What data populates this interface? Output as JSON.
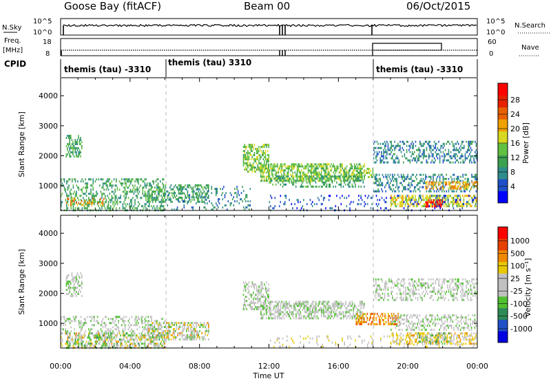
{
  "header": {
    "station": "Goose Bay (fitACF)",
    "beam": "Beam 00",
    "date": "06/Oct/2015"
  },
  "summary": {
    "nsky_label": "N.Sky",
    "nsky_ticks": [
      "10^5",
      "10^0"
    ],
    "nsearch_label": "N.Search",
    "nsearch_ticks": [
      "10^5",
      "10^0"
    ],
    "freq_label": "Freq.",
    "freq_unit": "[MHz]",
    "freq_ticks": [
      "18",
      "8"
    ],
    "nave_label": "Nave",
    "nave_ticks": [
      "60",
      "0"
    ],
    "cpid_label": "CPID",
    "cpid_segments": [
      {
        "start_hr": 0,
        "end_hr": 6,
        "label": "themis (tau) -3310"
      },
      {
        "start_hr": 6,
        "end_hr": 18,
        "label": "themis (tau) 3310"
      },
      {
        "start_hr": 18,
        "end_hr": 24,
        "label": "themis (tau) -3310"
      }
    ]
  },
  "chart_data": [
    {
      "type": "heatmap",
      "name": "power",
      "ylabel": "Slant Range [km]",
      "yticks": [
        1000,
        2000,
        3000,
        4000
      ],
      "ylim": [
        180,
        4600
      ],
      "xlim": [
        0,
        24
      ],
      "colorbar_label": "Power [dB]",
      "colorbar_ticks": [
        "28",
        "24",
        "20",
        "16",
        "12",
        "8",
        "4"
      ],
      "colorbar_colors": [
        "#0000ff",
        "#1e50c8",
        "#2f8c8c",
        "#3ca050",
        "#60c040",
        "#d8d820",
        "#f0a000",
        "#e86000",
        "#e82000",
        "#ff0000"
      ],
      "scatter_bands": [
        {
          "h0": 0.3,
          "h1": 1.2,
          "r0": 2000,
          "r1": 2700,
          "level": 3,
          "density": 0.5
        },
        {
          "h0": 0.0,
          "h1": 6.0,
          "r0": 200,
          "r1": 1250,
          "level": 3,
          "density": 0.35
        },
        {
          "h0": 0.3,
          "h1": 2.5,
          "r0": 350,
          "r1": 600,
          "level": 6,
          "density": 0.3
        },
        {
          "h0": 5.0,
          "h1": 8.5,
          "r0": 500,
          "r1": 1050,
          "level": 3,
          "density": 0.4
        },
        {
          "h0": 6.0,
          "h1": 11.0,
          "r0": 200,
          "r1": 1000,
          "level": 2,
          "density": 0.15
        },
        {
          "h0": 10.5,
          "h1": 12.0,
          "r0": 1500,
          "r1": 2400,
          "level": 4,
          "density": 0.55
        },
        {
          "h0": 11.5,
          "h1": 17.5,
          "r0": 1150,
          "r1": 1750,
          "level": 4,
          "density": 0.6
        },
        {
          "h0": 12.0,
          "h1": 17.5,
          "r0": 1000,
          "r1": 1350,
          "level": 3,
          "density": 0.3
        },
        {
          "h0": 17.0,
          "h1": 18.0,
          "r0": 1300,
          "r1": 1600,
          "level": 4,
          "density": 0.5
        },
        {
          "h0": 18.0,
          "h1": 24.0,
          "r0": 1750,
          "r1": 2500,
          "level": 2,
          "density": 0.4
        },
        {
          "h0": 18.0,
          "h1": 24.0,
          "r0": 800,
          "r1": 1400,
          "level": 2,
          "density": 0.35
        },
        {
          "h0": 19.0,
          "h1": 24.0,
          "r0": 300,
          "r1": 700,
          "level": 5,
          "density": 0.55
        },
        {
          "h0": 21.0,
          "h1": 22.0,
          "r0": 300,
          "r1": 550,
          "level": 9,
          "density": 0.6
        },
        {
          "h0": 21.0,
          "h1": 24.0,
          "r0": 900,
          "r1": 1150,
          "level": 6,
          "density": 0.5
        },
        {
          "h0": 12.0,
          "h1": 24.0,
          "r0": 200,
          "r1": 700,
          "level": 1,
          "density": 0.12
        }
      ]
    },
    {
      "type": "heatmap",
      "name": "velocity",
      "ylabel": "Slant Range [km]",
      "xlabel": "Time UT",
      "xticks": [
        "00:00",
        "04:00",
        "08:00",
        "12:00",
        "16:00",
        "20:00",
        "00:00"
      ],
      "yticks": [
        1000,
        2000,
        3000,
        4000
      ],
      "ylim": [
        180,
        4600
      ],
      "xlim": [
        0,
        24
      ],
      "colorbar_label": "Velocity [m s⁻¹]",
      "colorbar_ticks": [
        "1000",
        "500",
        "100",
        "25",
        "-25",
        "-100",
        "-500",
        "-1000"
      ],
      "colorbar_colors": [
        "#0000e0",
        "#2050c8",
        "#2e8b57",
        "#50c030",
        "#c0c0c0",
        "#c0c0c0",
        "#e8c800",
        "#f08800",
        "#e84000",
        "#ff0000"
      ],
      "scatter_bands": [
        {
          "h0": 0.3,
          "h1": 1.2,
          "r0": 1900,
          "r1": 2700,
          "level": 4,
          "density": 0.45
        },
        {
          "h0": 0.0,
          "h1": 6.0,
          "r0": 200,
          "r1": 1250,
          "level": 4,
          "density": 0.3
        },
        {
          "h0": 0.0,
          "h1": 6.0,
          "r0": 200,
          "r1": 700,
          "level": 6,
          "density": 0.2
        },
        {
          "h0": 0.0,
          "h1": 6.0,
          "r0": 200,
          "r1": 700,
          "level": 3,
          "density": 0.15
        },
        {
          "h0": 5.0,
          "h1": 8.5,
          "r0": 500,
          "r1": 1050,
          "level": 4,
          "density": 0.4
        },
        {
          "h0": 5.0,
          "h1": 8.5,
          "r0": 500,
          "r1": 1050,
          "level": 6,
          "density": 0.15
        },
        {
          "h0": 10.5,
          "h1": 12.0,
          "r0": 1500,
          "r1": 2400,
          "level": 4,
          "density": 0.5
        },
        {
          "h0": 11.5,
          "h1": 17.5,
          "r0": 1150,
          "r1": 1750,
          "level": 4,
          "density": 0.55
        },
        {
          "h0": 17.0,
          "h1": 19.5,
          "r0": 950,
          "r1": 1350,
          "level": 7,
          "density": 0.55
        },
        {
          "h0": 18.0,
          "h1": 24.0,
          "r0": 1750,
          "r1": 2500,
          "level": 4,
          "density": 0.35
        },
        {
          "h0": 19.0,
          "h1": 24.0,
          "r0": 800,
          "r1": 1300,
          "level": 4,
          "density": 0.35
        },
        {
          "h0": 19.0,
          "h1": 24.0,
          "r0": 300,
          "r1": 700,
          "level": 6,
          "density": 0.45
        },
        {
          "h0": 20.5,
          "h1": 22.5,
          "r0": 300,
          "r1": 700,
          "level": 3,
          "density": 0.35
        },
        {
          "h0": 12.0,
          "h1": 24.0,
          "r0": 200,
          "r1": 600,
          "level": 5,
          "density": 0.1
        }
      ]
    }
  ]
}
